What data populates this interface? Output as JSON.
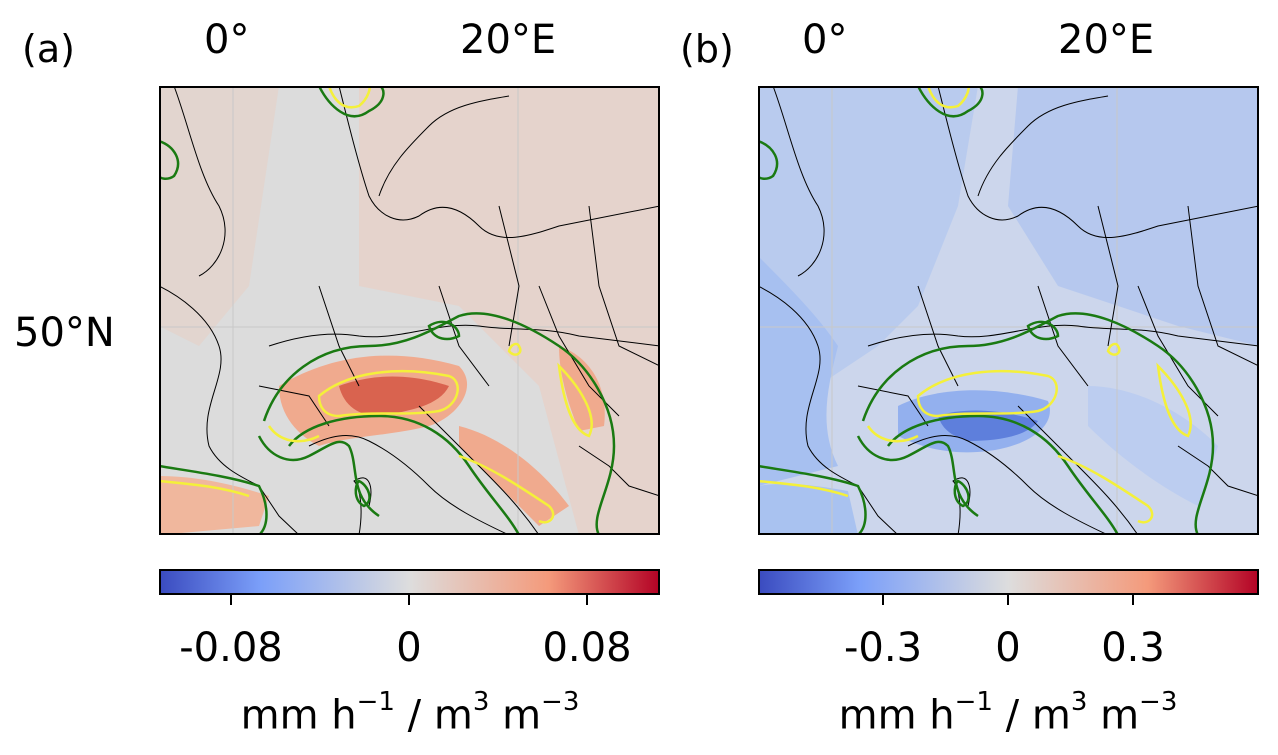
{
  "panels": [
    {
      "letter": "(a)",
      "lon_labels": [
        "0°",
        "20°E"
      ],
      "lat_label": "50°N",
      "field": "positive",
      "colorbar": {
        "cmap": "coolwarm",
        "ticks": [
          "-0.08",
          "0",
          "0.08"
        ],
        "unit": "mm h",
        "unit_exp1": "−1",
        "unit_mid": " / m",
        "unit_exp2": "3",
        "unit_tail": " m",
        "unit_exp3": "−3"
      }
    },
    {
      "letter": "(b)",
      "lon_labels": [
        "0°",
        "20°E"
      ],
      "lat_label": "",
      "field": "negative",
      "colorbar": {
        "cmap": "coolwarm",
        "ticks": [
          "-0.3",
          "0",
          "0.3"
        ],
        "unit": "mm h",
        "unit_exp1": "−1",
        "unit_mid": " / m",
        "unit_exp2": "3",
        "unit_tail": " m",
        "unit_exp3": "−3"
      }
    }
  ],
  "colors": {
    "background_map": "#dcdcdc",
    "warm_low": "#efd2c6",
    "warm_mid": "#f0a88a",
    "warm_high": "#d65a48",
    "cool_low": "#c7d4ee",
    "cool_mid": "#a9c2f0",
    "cool_high": "#6c8fe6",
    "contour_green": "#1a7a12",
    "contour_yellow": "#f4f03a",
    "cmap_blue": "#3b4cc0",
    "cmap_white": "#dddddd",
    "cmap_red": "#b40426"
  }
}
